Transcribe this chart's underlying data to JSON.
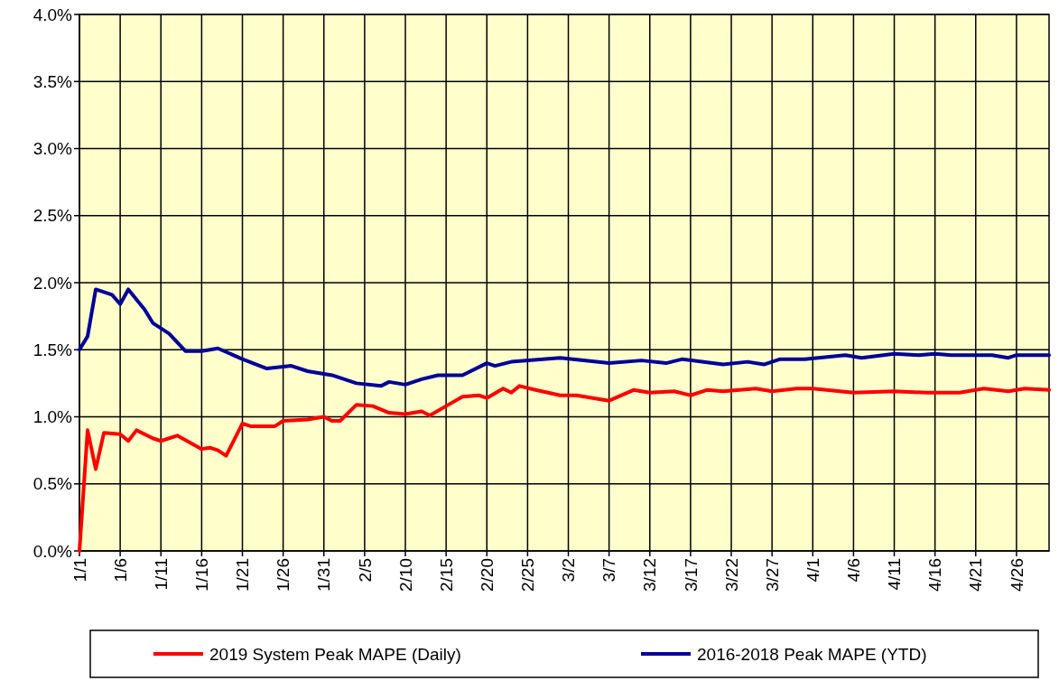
{
  "chart_data": {
    "type": "line",
    "xlim": [
      "--01-01",
      "--04-30"
    ],
    "xticks": [
      {
        "value": "--01-01",
        "label": "1/1"
      },
      {
        "value": "--01-06",
        "label": "1/6"
      },
      {
        "value": "--01-11",
        "label": "1/11"
      },
      {
        "value": "--01-16",
        "label": "1/16"
      },
      {
        "value": "--01-21",
        "label": "1/21"
      },
      {
        "value": "--01-26",
        "label": "1/26"
      },
      {
        "value": "--01-31",
        "label": "1/31"
      },
      {
        "value": "--02-05",
        "label": "2/5"
      },
      {
        "value": "--02-10",
        "label": "2/10"
      },
      {
        "value": "--02-15",
        "label": "2/15"
      },
      {
        "value": "--02-20",
        "label": "2/20"
      },
      {
        "value": "--02-25",
        "label": "2/25"
      },
      {
        "value": "--03-02",
        "label": "3/2"
      },
      {
        "value": "--03-07",
        "label": "3/7"
      },
      {
        "value": "--03-12",
        "label": "3/12"
      },
      {
        "value": "--03-17",
        "label": "3/17"
      },
      {
        "value": "--03-22",
        "label": "3/22"
      },
      {
        "value": "--03-27",
        "label": "3/27"
      },
      {
        "value": "--04-01",
        "label": "4/1"
      },
      {
        "value": "--04-06",
        "label": "4/6"
      },
      {
        "value": "--04-11",
        "label": "4/11"
      },
      {
        "value": "--04-16",
        "label": "4/16"
      },
      {
        "value": "--04-21",
        "label": "4/21"
      },
      {
        "value": "--04-26",
        "label": "4/26"
      }
    ],
    "ylim": [
      0,
      4
    ],
    "yticks": [
      {
        "value": 0,
        "label": "0.0%"
      },
      {
        "value": 0.5,
        "label": "0.5%"
      },
      {
        "value": 1,
        "label": "1.0%"
      },
      {
        "value": 1.5,
        "label": "1.5%"
      },
      {
        "value": 2,
        "label": "2.0%"
      },
      {
        "value": 2.5,
        "label": "2.5%"
      },
      {
        "value": 3,
        "label": "3.0%"
      },
      {
        "value": 3.5,
        "label": "3.5%"
      },
      {
        "value": 4,
        "label": "4.0%"
      }
    ],
    "grid": true,
    "legend": "bottom",
    "line_style": "solid",
    "series": [
      {
        "name": "2019 System Peak MAPE (Daily)",
        "color": "#ff0000",
        "x": [
          "--01-01",
          "--01-02",
          "--01-03",
          "--01-04",
          "--01-06",
          "--01-07",
          "--01-08",
          "--01-10",
          "--01-11",
          "--01-13",
          "--01-16",
          "--01-17",
          "--01-18",
          "--01-19",
          "--01-21",
          "--01-22",
          "--01-25",
          "--01-26",
          "--01-29",
          "--01-31",
          "--02-01",
          "--02-02",
          "--02-04",
          "--02-06",
          "--02-08",
          "--02-10",
          "--02-12",
          "--02-13",
          "--02-15",
          "--02-17",
          "--02-19",
          "--02-20",
          "--02-22",
          "--02-23",
          "--02-24",
          "--02-26",
          "--03-01",
          "--03-03",
          "--03-07",
          "--03-10",
          "--03-12",
          "--03-15",
          "--03-17",
          "--03-19",
          "--03-21",
          "--03-25",
          "--03-27",
          "--03-30",
          "--04-01",
          "--04-06",
          "--04-11",
          "--04-15",
          "--04-19",
          "--04-22",
          "--04-25",
          "--04-27",
          "--04-30"
        ],
        "values": [
          0.0,
          0.9,
          0.61,
          0.88,
          0.87,
          0.82,
          0.9,
          0.84,
          0.82,
          0.86,
          0.76,
          0.77,
          0.75,
          0.71,
          0.95,
          0.93,
          0.93,
          0.97,
          0.98,
          1.0,
          0.97,
          0.97,
          1.09,
          1.08,
          1.03,
          1.02,
          1.04,
          1.01,
          1.08,
          1.15,
          1.16,
          1.14,
          1.21,
          1.18,
          1.23,
          1.2,
          1.16,
          1.16,
          1.12,
          1.2,
          1.18,
          1.19,
          1.16,
          1.2,
          1.19,
          1.21,
          1.19,
          1.21,
          1.21,
          1.18,
          1.19,
          1.18,
          1.18,
          1.21,
          1.19,
          1.21,
          1.2
        ]
      },
      {
        "name": "2016-2018 Peak MAPE (YTD)",
        "color": "#000099",
        "x": [
          "--01-01",
          "--01-02",
          "--01-03",
          "--01-05",
          "--01-06",
          "--01-07",
          "--01-09",
          "--01-10",
          "--01-12",
          "--01-14",
          "--01-16",
          "--01-18",
          "--01-21",
          "--01-24",
          "--01-27",
          "--01-29",
          "--02-01",
          "--02-04",
          "--02-07",
          "--02-08",
          "--02-10",
          "--02-12",
          "--02-14",
          "--02-17",
          "--02-20",
          "--02-21",
          "--02-23",
          "--03-01",
          "--03-07",
          "--03-11",
          "--03-14",
          "--03-16",
          "--03-21",
          "--03-24",
          "--03-26",
          "--03-28",
          "--03-31",
          "--04-05",
          "--04-07",
          "--04-11",
          "--04-14",
          "--04-16",
          "--04-18",
          "--04-23",
          "--04-25",
          "--04-26",
          "--04-30"
        ],
        "values": [
          1.5,
          1.6,
          1.95,
          1.91,
          1.84,
          1.95,
          1.8,
          1.7,
          1.62,
          1.49,
          1.49,
          1.51,
          1.43,
          1.36,
          1.38,
          1.34,
          1.31,
          1.25,
          1.23,
          1.26,
          1.24,
          1.28,
          1.31,
          1.31,
          1.4,
          1.38,
          1.41,
          1.44,
          1.4,
          1.42,
          1.4,
          1.43,
          1.39,
          1.41,
          1.39,
          1.43,
          1.43,
          1.46,
          1.44,
          1.47,
          1.46,
          1.47,
          1.46,
          1.46,
          1.44,
          1.46,
          1.46
        ]
      }
    ]
  }
}
